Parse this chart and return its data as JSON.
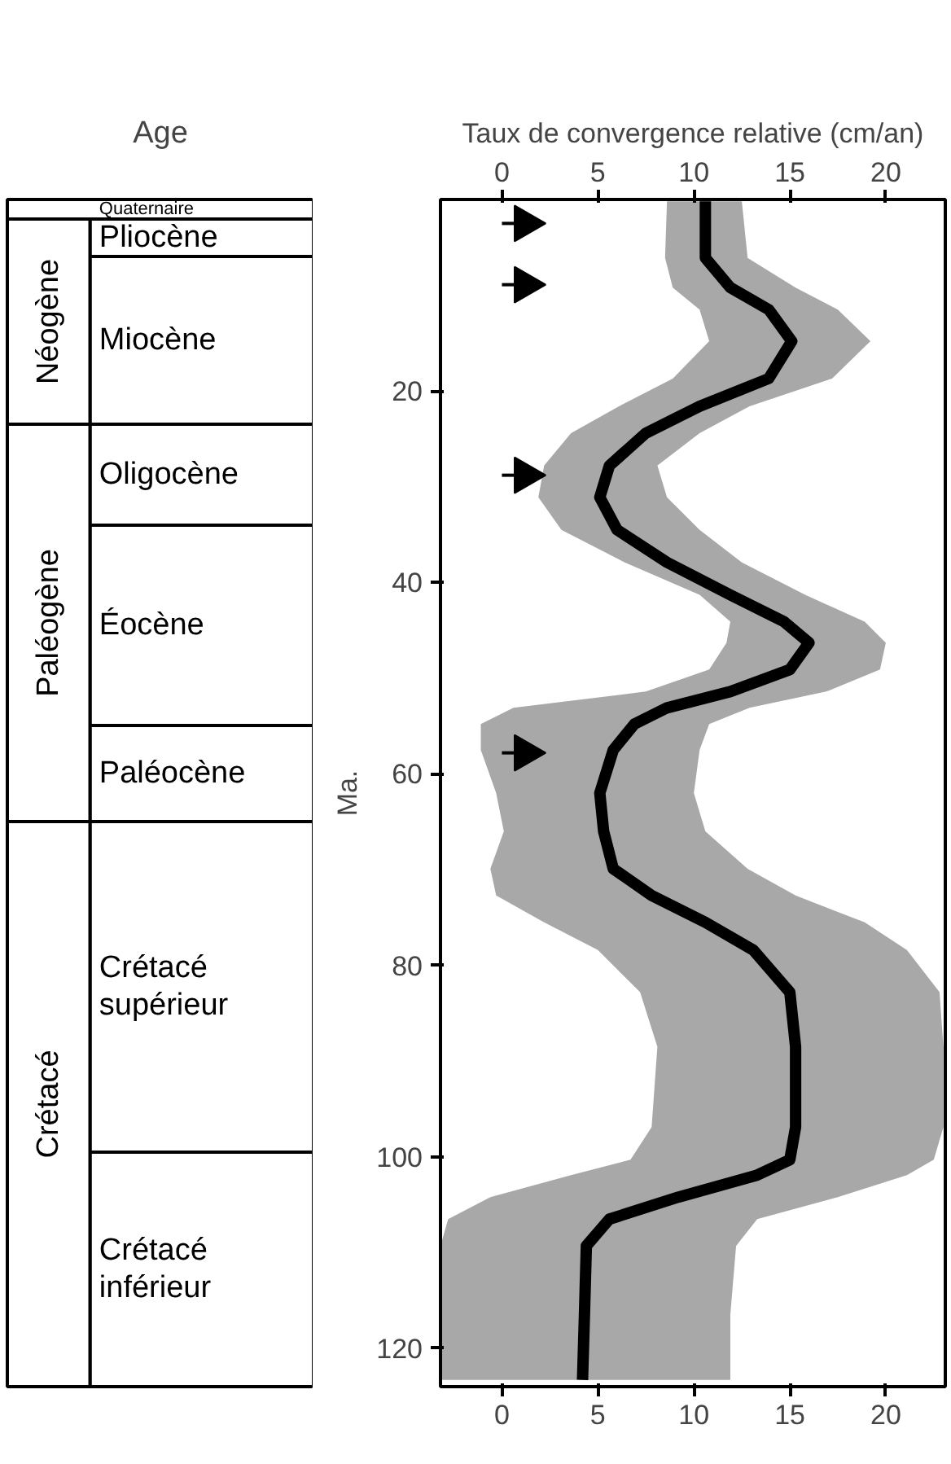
{
  "chart_data": [
    {
      "type": "other",
      "title": "Age",
      "annotations": [
        "Quaternaire",
        "Pliocène",
        "Miocène",
        "Oligocène",
        "Éocène",
        "Paléocène",
        "Crétacé\nsupérieur",
        "Crétacé\ninférieur",
        "Néogène",
        "Paléogène",
        "Crétacé"
      ]
    },
    {
      "type": "line",
      "orientation": "horizontal",
      "x2label": "Taux de convergence relative (cm/an)",
      "ylabel": "Ma.",
      "xlim": [
        -3.2,
        23.1
      ],
      "xticks": [
        0,
        5,
        10,
        15,
        20
      ],
      "x2lim": [
        -3.2,
        23.1
      ],
      "x2ticks": [
        0,
        5,
        10,
        15,
        20
      ],
      "ylim": [
        124,
        0
      ],
      "yticks": [
        20,
        40,
        60,
        80,
        100,
        120
      ],
      "grid": false,
      "marker": "none",
      "line_style": "solid",
      "x": [
        0.2,
        6.1,
        9.2,
        11.5,
        14.8,
        18.7,
        21.6,
        24.4,
        27.8,
        31.1,
        34.5,
        37.9,
        41.3,
        44.1,
        46.3,
        49.1,
        51.4,
        53.1,
        54.8,
        57.5,
        62,
        66,
        69.9,
        72.7,
        75.5,
        78.4,
        82.8,
        88.5,
        96.9,
        100.3,
        101.9,
        104.2,
        106.5,
        109.3,
        116.5,
        123.3
      ],
      "series": [
        {
          "color": "#000000",
          "values": [
            10.6,
            10.6,
            11.9,
            13.9,
            15.1,
            13.9,
            10.3,
            7.5,
            5.6,
            5.1,
            6.0,
            8.6,
            11.9,
            14.7,
            16.0,
            15.0,
            11.9,
            8.6,
            6.9,
            5.8,
            5.1,
            5.3,
            5.8,
            7.8,
            10.6,
            13.1,
            15.0,
            15.3,
            15.3,
            15.0,
            13.3,
            9.2,
            5.6,
            4.4,
            4.3,
            4.2
          ],
          "lower": [
            8.6,
            8.5,
            8.9,
            10.3,
            10.8,
            8.9,
            6.1,
            3.6,
            2.2,
            1.9,
            3.1,
            6.4,
            10.3,
            11.9,
            11.7,
            10.8,
            7.5,
            0.6,
            -1.1,
            -1.1,
            -0.3,
            0.1,
            -0.6,
            -0.3,
            2.2,
            5.0,
            7.2,
            8.1,
            7.8,
            6.7,
            3.6,
            -0.6,
            -2.8,
            -3.2,
            -3.2,
            -3.2
          ],
          "upper": [
            12.5,
            12.8,
            15.3,
            17.5,
            19.2,
            17.2,
            12.9,
            10.3,
            8.1,
            8.6,
            10.3,
            12.5,
            15.8,
            18.9,
            20.0,
            19.7,
            16.9,
            12.9,
            10.8,
            10.3,
            10.0,
            10.6,
            12.8,
            15.3,
            18.9,
            21.1,
            22.8,
            23.0,
            23.0,
            22.5,
            21.1,
            17.5,
            13.3,
            12.2,
            11.9,
            11.9
          ]
        },
        {
          "type": "lollipop",
          "color": "#000000",
          "marker": "triangle",
          "x": [
            2.5,
            8.9,
            28.8,
            57.8
          ],
          "values": [
            1.2,
            1.2,
            1.2,
            1.2
          ]
        }
      ]
    }
  ]
}
